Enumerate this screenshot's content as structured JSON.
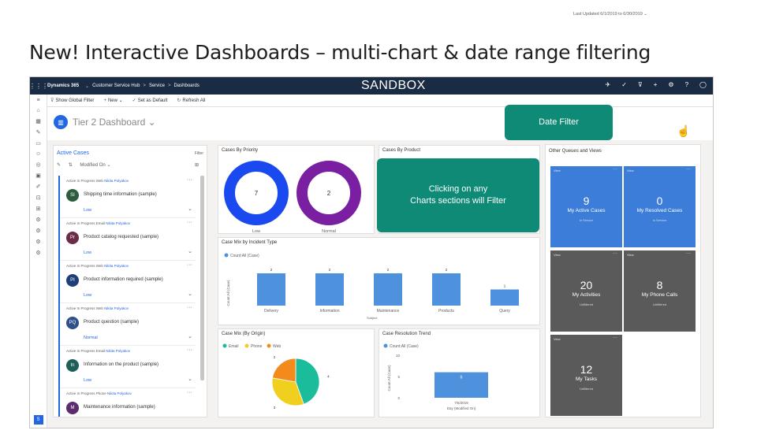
{
  "slide": {
    "title": "New! Interactive Dashboards – multi-chart & date range filtering"
  },
  "topbar": {
    "app_name": "Dynamics 365",
    "module": "Customer Service Hub",
    "crumb1": "Service",
    "crumb2": "Dashboards",
    "env_label": "SANDBOX"
  },
  "commands": {
    "show_global": "Show Global Filter",
    "new": "New",
    "set_default": "Set as Default",
    "refresh": "Refresh All"
  },
  "dashboard": {
    "name": "Tier 2 Dashboard",
    "last_updated": "Last Updated 6/1/2019 to 6/30/2019"
  },
  "callouts": {
    "date_filter": "Date Filter",
    "charts_filter_line1": "Clicking on any",
    "charts_filter_line2": "Charts sections will Filter"
  },
  "active_cases": {
    "title": "Active Cases",
    "filter_label": "Filter",
    "sort_label": "Modified On",
    "items": [
      {
        "status": "Active",
        "reason": "In Progress",
        "origin": "Web",
        "owner": "Nikita Polyakov",
        "initials": "SI",
        "avatar_color": "#2e5d3e",
        "title": "Shipping time information (sample)",
        "priority": "Low"
      },
      {
        "status": "Active",
        "reason": "In Progress",
        "origin": "Email",
        "owner": "Nikita Polyakov",
        "initials": "Pr",
        "avatar_color": "#6b2c47",
        "title": "Product catalog requested (sample)",
        "priority": "Low"
      },
      {
        "status": "Active",
        "reason": "In Progress",
        "origin": "Web",
        "owner": "Nikita Polyakov",
        "initials": "PI",
        "avatar_color": "#1f3f7a",
        "title": "Product information required (sample)",
        "priority": "Low"
      },
      {
        "status": "Active",
        "reason": "In Progress",
        "origin": "Web",
        "owner": "Nikita Polyakov",
        "initials": "PQ",
        "avatar_color": "#2e4f8a",
        "title": "Product question (sample)",
        "priority": "Normal"
      },
      {
        "status": "Active",
        "reason": "In Progress",
        "origin": "Email",
        "owner": "Nikita Polyakov",
        "initials": "In",
        "avatar_color": "#1f5e5a",
        "title": "Information on the product (sample)",
        "priority": "Low"
      },
      {
        "status": "Active",
        "reason": "In Progress",
        "origin": "Phone",
        "owner": "Nikita Polyakov",
        "initials": "M",
        "avatar_color": "#5b2d6e",
        "title": "Maintenance information (sample)",
        "priority": ""
      }
    ]
  },
  "panels": {
    "by_priority": "Cases By Priority",
    "by_product": "Cases By Product",
    "by_incident": "Case Mix by Incident Type",
    "by_origin": "Case Mix (By Origin)",
    "resolution": "Case Resolution Trend",
    "other_queues": "Other Queues and Views"
  },
  "chart_data": [
    {
      "type": "pie",
      "title": "Cases By Priority",
      "categories": [
        "Low",
        "Normal"
      ],
      "values": [
        7,
        2
      ],
      "colors": [
        "#1a49ef",
        "#7a1fa2"
      ]
    },
    {
      "type": "bar",
      "title": "Case Mix by Incident Type",
      "legend": "Count:All (Case)",
      "categories": [
        "Delivery",
        "Information",
        "Maintenance",
        "Products",
        "Query"
      ],
      "values": [
        2,
        2,
        2,
        2,
        1
      ],
      "xlabel": "Subject",
      "ylabel": "Count:All (Case)",
      "color": "#4e91dc"
    },
    {
      "type": "pie",
      "title": "Case Mix (By Origin)",
      "categories": [
        "Email",
        "Phone",
        "Web"
      ],
      "values": [
        4,
        3,
        2
      ],
      "colors": [
        "#1abc9c",
        "#f0cf1f",
        "#f38b1c"
      ]
    },
    {
      "type": "bar",
      "title": "Case Resolution Trend",
      "legend": "Count:All (Case)",
      "categories": [
        "7/5/2019"
      ],
      "values": [
        6
      ],
      "ylim": [
        0,
        10
      ],
      "yticks": [
        "10",
        "5",
        "0"
      ],
      "xlabel": "Day (Modified On)",
      "ylabel": "Count:All (Case)",
      "color": "#4e91dc"
    }
  ],
  "tiles": [
    {
      "count": "9",
      "label": "My Active Cases",
      "sub": "In Service",
      "color": "#3b7dd8"
    },
    {
      "count": "0",
      "label": "My Resolved Cases",
      "sub": "In Service",
      "color": "#3b7dd8"
    },
    {
      "count": "20",
      "label": "My Activities",
      "sub": "Unfiltered",
      "color": "#5a5a5a"
    },
    {
      "count": "8",
      "label": "My Phone Calls",
      "sub": "Unfiltered",
      "color": "#5a5a5a"
    },
    {
      "count": "12",
      "label": "My Tasks",
      "sub": "Unfiltered",
      "color": "#5a5a5a"
    }
  ],
  "tile_view_label": "View"
}
